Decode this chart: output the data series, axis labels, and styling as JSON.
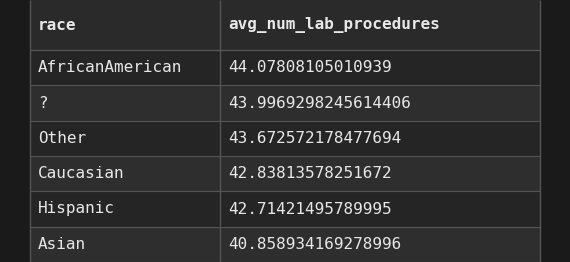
{
  "columns": [
    "race",
    "avg_num_lab_procedures"
  ],
  "rows": [
    [
      "AfricanAmerican",
      "44.07808105010939"
    ],
    [
      "?",
      "43.9969298245614406"
    ],
    [
      "Other",
      "43.672572178477694"
    ],
    [
      "Caucasian",
      "42.83813578251672"
    ],
    [
      "Hispanic",
      "42.71421495789995"
    ],
    [
      "Asian",
      "40.858934169278996"
    ]
  ],
  "bg_color": "#1a1a1a",
  "header_bg_color": "#2a2a2a",
  "row_bg_even": "#252525",
  "row_bg_odd": "#2e2e2e",
  "side_strip_color": "#1a1a1a",
  "text_color": "#e8e8e8",
  "border_color": "#555555",
  "header_font_size": 11.5,
  "cell_font_size": 11.5,
  "fig_width": 5.7,
  "fig_height": 2.62,
  "dpi": 100
}
